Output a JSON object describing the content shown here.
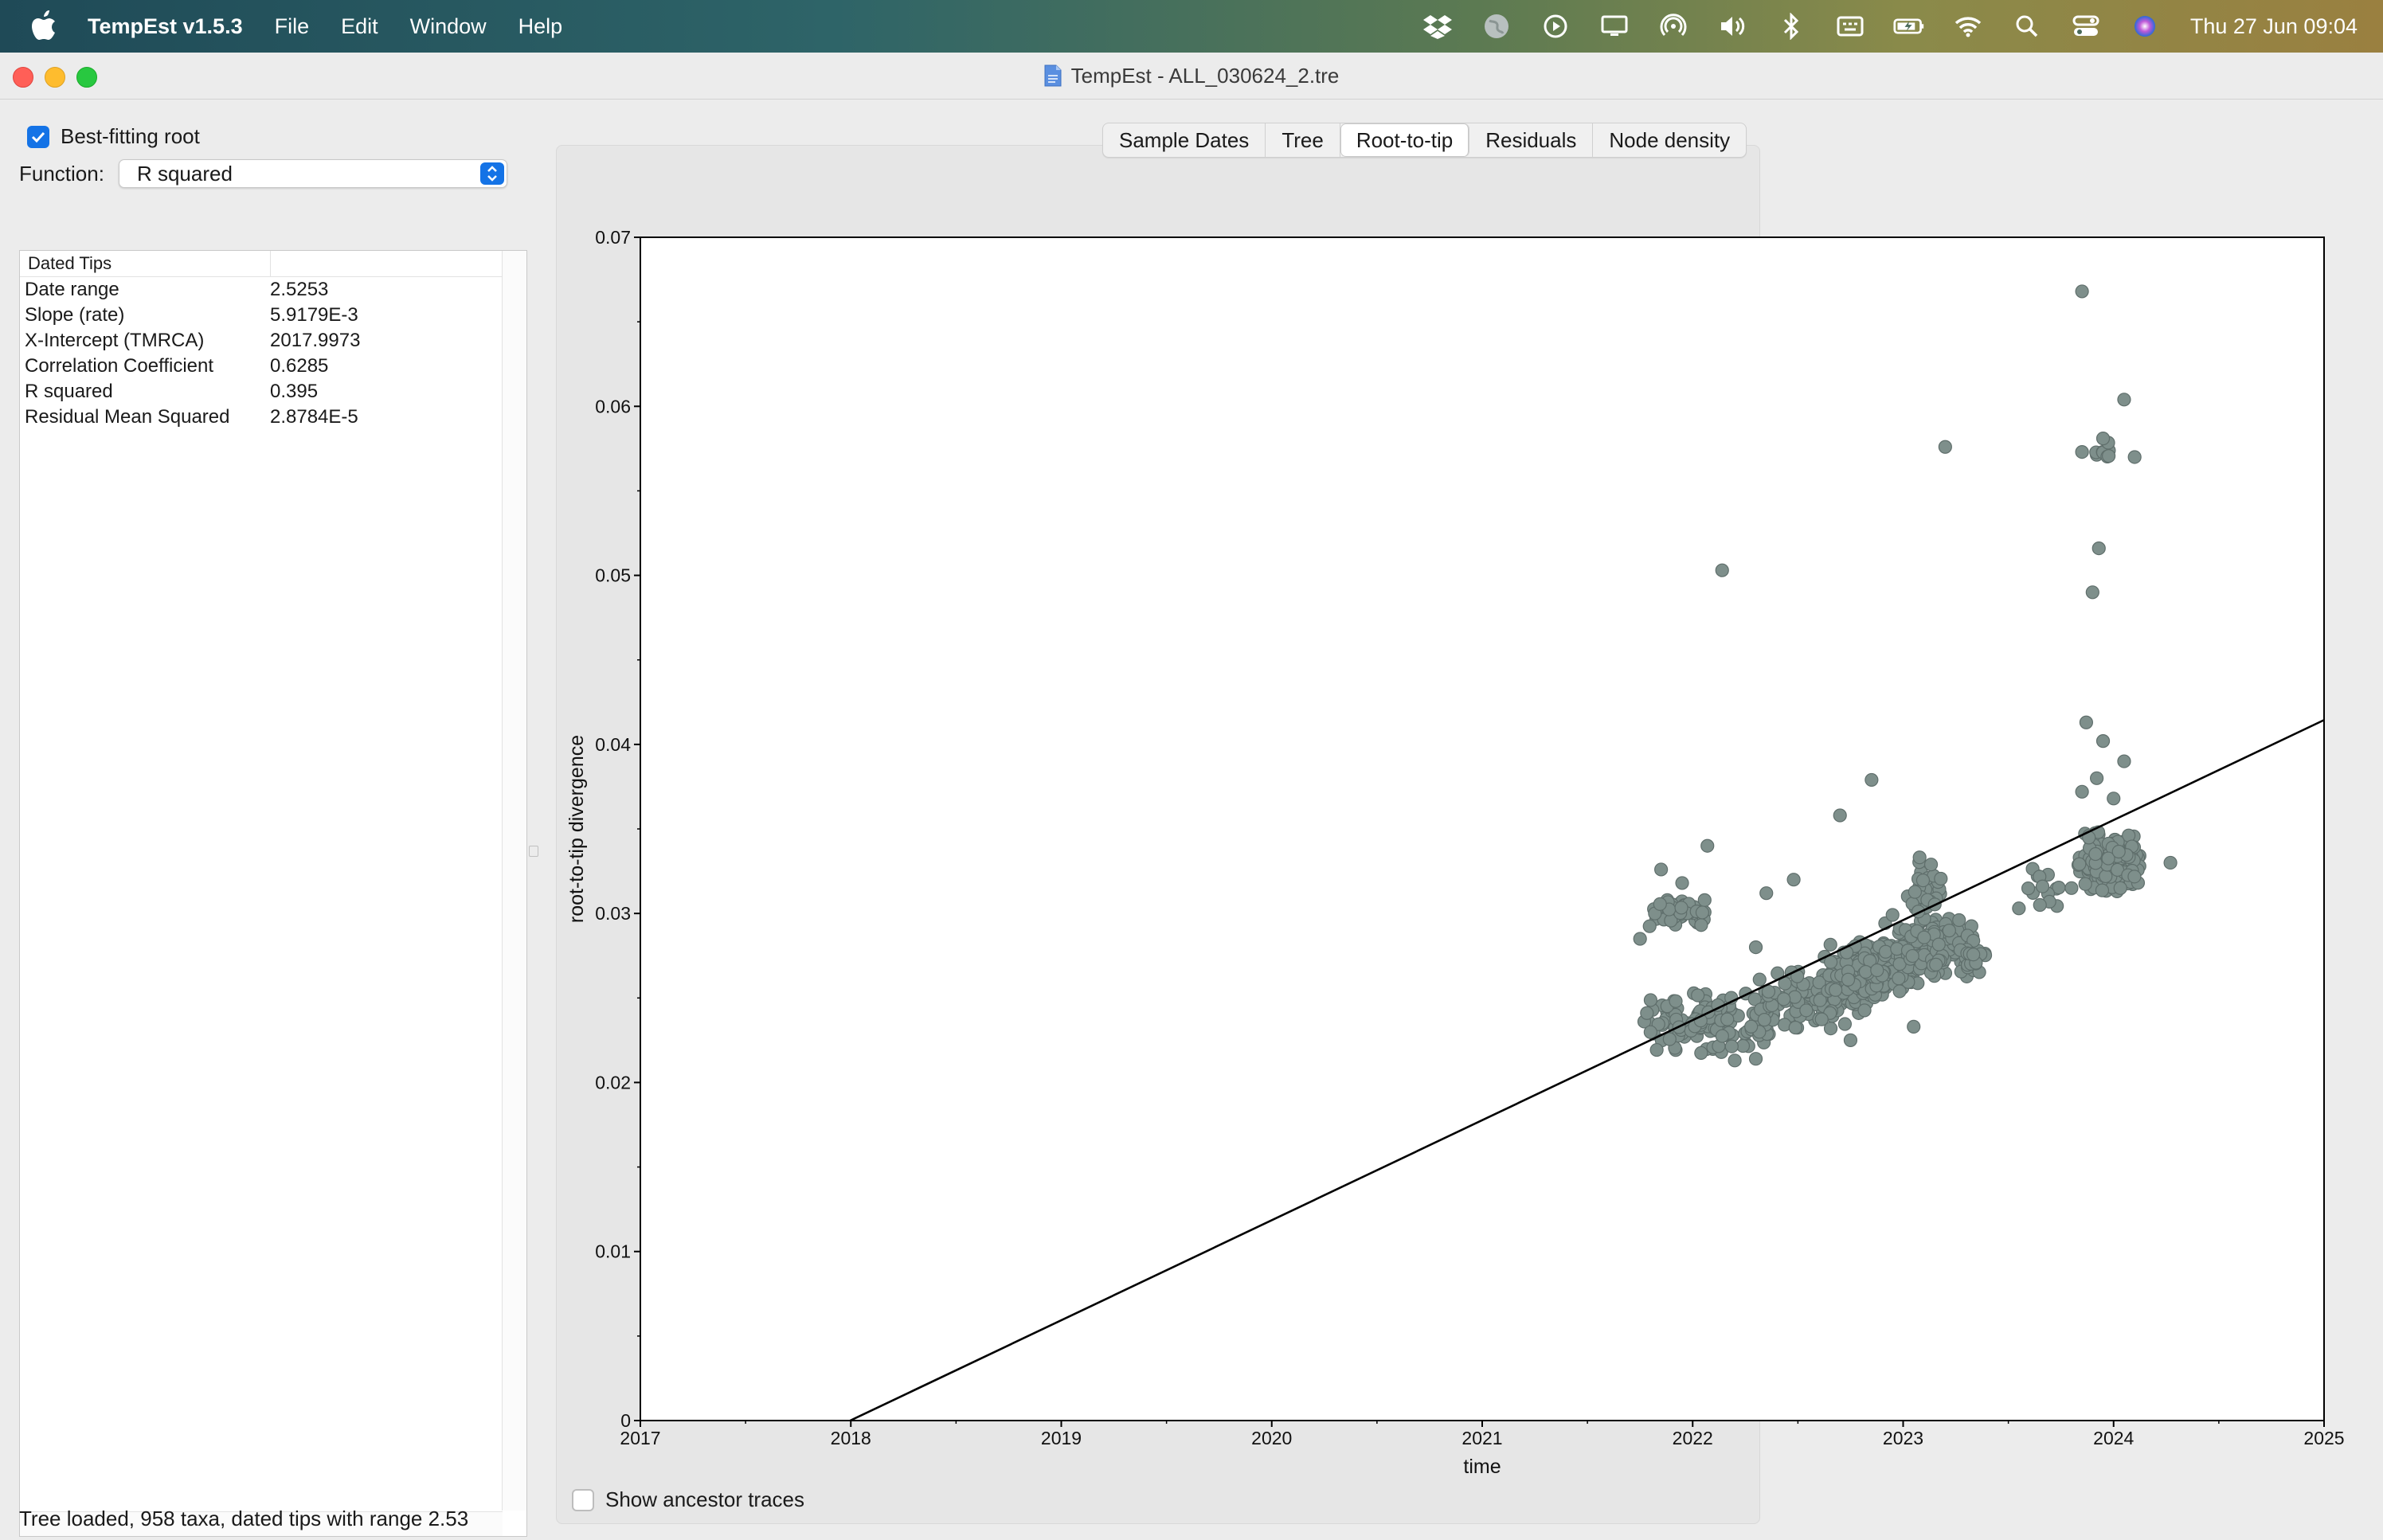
{
  "menubar": {
    "app_name": "TempEst v1.5.3",
    "menus": [
      "File",
      "Edit",
      "Window",
      "Help"
    ],
    "clock": "Thu 27 Jun  09:04",
    "status_icons": [
      "dropbox-icon",
      "globe-icon",
      "play-icon",
      "display-icon",
      "airdrop-icon",
      "volume-icon",
      "bluetooth-icon",
      "keyboard-icon",
      "battery-icon",
      "wifi-icon",
      "search-icon",
      "control-center-icon",
      "siri-icon"
    ]
  },
  "window": {
    "title": "TempEst - ALL_030624_2.tre"
  },
  "left_panel": {
    "best_fitting_root": {
      "label": "Best-fitting root",
      "checked": true
    },
    "function_label": "Function:",
    "function_value": "R squared",
    "table": {
      "header": "Dated Tips",
      "rows": [
        {
          "label": "Date range",
          "value": "2.5253"
        },
        {
          "label": "Slope (rate)",
          "value": "5.9179E-3"
        },
        {
          "label": "X-Intercept (TMRCA)",
          "value": "2017.9973"
        },
        {
          "label": "Correlation Coefficient",
          "value": "0.6285"
        },
        {
          "label": "R squared",
          "value": "0.395"
        },
        {
          "label": "Residual Mean Squared",
          "value": "2.8784E-5"
        }
      ]
    }
  },
  "tabs": {
    "items": [
      "Sample Dates",
      "Tree",
      "Root-to-tip",
      "Residuals",
      "Node density"
    ],
    "active": "Root-to-tip"
  },
  "show_ancestor_traces": {
    "label": "Show ancestor traces",
    "checked": false
  },
  "status": "Tree loaded, 958 taxa, dated tips with range 2.53",
  "chart_data": {
    "type": "scatter",
    "xlabel": "time",
    "ylabel": "root-to-tip divergence",
    "xlim": [
      2017,
      2025
    ],
    "ylim": [
      0,
      0.07
    ],
    "x_ticks": [
      "2017",
      "2018",
      "2019",
      "2020",
      "2021",
      "2022",
      "2023",
      "2024",
      "2025"
    ],
    "y_ticks": [
      "0",
      "0.01",
      "0.02",
      "0.03",
      "0.04",
      "0.05",
      "0.06",
      "0.07"
    ],
    "point_color": "#7e8f8b",
    "line_color": "#000000",
    "regression": {
      "slope": 0.0059179,
      "x_intercept": 2017.9973
    },
    "outliers": [
      [
        2023.85,
        0.0668
      ],
      [
        2024.05,
        0.0604
      ],
      [
        2023.2,
        0.0576
      ],
      [
        2023.85,
        0.0573
      ],
      [
        2023.95,
        0.0581
      ],
      [
        2024.1,
        0.057
      ],
      [
        2023.93,
        0.0516
      ],
      [
        2023.9,
        0.049
      ],
      [
        2022.14,
        0.0503
      ],
      [
        2023.87,
        0.0413
      ],
      [
        2023.95,
        0.0402
      ],
      [
        2024.05,
        0.039
      ],
      [
        2023.92,
        0.038
      ],
      [
        2023.85,
        0.0372
      ],
      [
        2022.85,
        0.0379
      ],
      [
        2022.7,
        0.0358
      ],
      [
        2024.0,
        0.0368
      ],
      [
        2022.07,
        0.034
      ],
      [
        2021.85,
        0.0326
      ],
      [
        2021.95,
        0.0318
      ],
      [
        2022.35,
        0.0312
      ],
      [
        2022.48,
        0.032
      ],
      [
        2022.3,
        0.028
      ],
      [
        2022.75,
        0.0225
      ],
      [
        2023.05,
        0.0233
      ],
      [
        2021.75,
        0.0285
      ],
      [
        2024.27,
        0.033
      ],
      [
        2023.8,
        0.0315
      ],
      [
        2023.55,
        0.0303
      ],
      [
        2023.65,
        0.0305
      ],
      [
        2022.2,
        0.0213
      ],
      [
        2022.3,
        0.0214
      ]
    ],
    "clusters": [
      {
        "x": [
          2021.75,
          2022.15
        ],
        "y": [
          0.029,
          0.031
        ],
        "n": 45
      },
      {
        "x": [
          2021.7,
          2022.5
        ],
        "y": [
          0.0215,
          0.0255
        ],
        "n": 140
      },
      {
        "x": [
          2022.3,
          2022.9
        ],
        "y": [
          0.023,
          0.027
        ],
        "n": 110
      },
      {
        "x": [
          2022.6,
          2023.1
        ],
        "y": [
          0.025,
          0.0285
        ],
        "n": 190
      },
      {
        "x": [
          2022.9,
          2023.35
        ],
        "y": [
          0.026,
          0.03
        ],
        "n": 130
      },
      {
        "x": [
          2023.0,
          2023.2
        ],
        "y": [
          0.029,
          0.0335
        ],
        "n": 30
      },
      {
        "x": [
          2023.25,
          2023.4
        ],
        "y": [
          0.0255,
          0.0295
        ],
        "n": 30
      },
      {
        "x": [
          2023.55,
          2023.75
        ],
        "y": [
          0.03,
          0.033
        ],
        "n": 12
      },
      {
        "x": [
          2023.82,
          2024.15
        ],
        "y": [
          0.031,
          0.035
        ],
        "n": 220
      },
      {
        "x": [
          2023.9,
          2024.0
        ],
        "y": [
          0.0565,
          0.058
        ],
        "n": 8
      }
    ]
  }
}
